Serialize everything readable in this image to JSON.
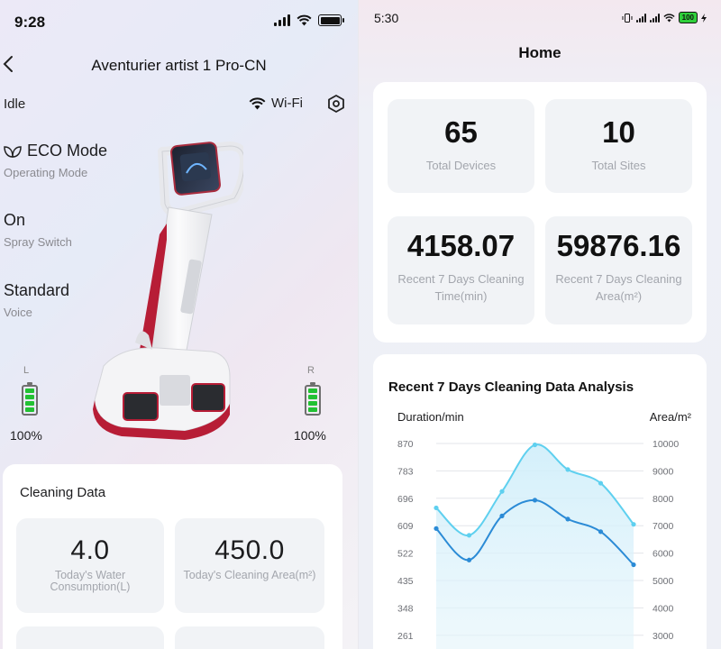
{
  "left": {
    "status_time": "9:28",
    "header_title": "Aventurier artist 1 Pro-CN",
    "state": "Idle",
    "wifi_label": "Wi-Fi",
    "modes": [
      {
        "value": "ECO Mode",
        "label": "Operating Mode",
        "icon": "leaf-icon"
      },
      {
        "value": "On",
        "label": "Spray Switch"
      },
      {
        "value": "Standard",
        "label": "Voice"
      }
    ],
    "battery_left": {
      "label": "L",
      "percent": "100%"
    },
    "battery_right": {
      "label": "R",
      "percent": "100%"
    },
    "cleaning": {
      "heading": "Cleaning Data",
      "tiles": [
        {
          "value": "4.0",
          "label": "Today's Water Consumption(L)"
        },
        {
          "value": "450.0",
          "label": "Today's Cleaning Area(m²)"
        }
      ]
    }
  },
  "right": {
    "status_time": "5:30",
    "battery_text": "100",
    "page_title": "Home",
    "stats": [
      {
        "value": "65",
        "label": "Total Devices"
      },
      {
        "value": "10",
        "label": "Total Sites"
      },
      {
        "value": "4158.07",
        "label": "Recent 7 Days Cleaning Time(min)"
      },
      {
        "value": "59876.16",
        "label": "Recent 7 Days Cleaning Area(m²)"
      }
    ]
  },
  "chart_data": {
    "type": "line",
    "title": "Recent 7 Days Cleaning Data Analysis",
    "left_axis_title": "Duration/min",
    "right_axis_title": "Area/m²",
    "left_ticks": [
      "870",
      "783",
      "696",
      "609",
      "522",
      "435",
      "348",
      "261"
    ],
    "right_ticks": [
      "10000",
      "9000",
      "8000",
      "7000",
      "6000",
      "5000",
      "4000",
      "3000"
    ],
    "left_range": [
      261,
      870
    ],
    "right_range": [
      3000,
      10000
    ],
    "series": [
      {
        "axis": "left",
        "color": "#2b8bd6",
        "values": [
          600,
          500,
          640,
          690,
          630,
          590,
          485
        ]
      },
      {
        "axis": "right",
        "color": "#5fd0ef",
        "values": [
          7650,
          6650,
          8250,
          9950,
          9050,
          8550,
          7050
        ]
      }
    ]
  }
}
